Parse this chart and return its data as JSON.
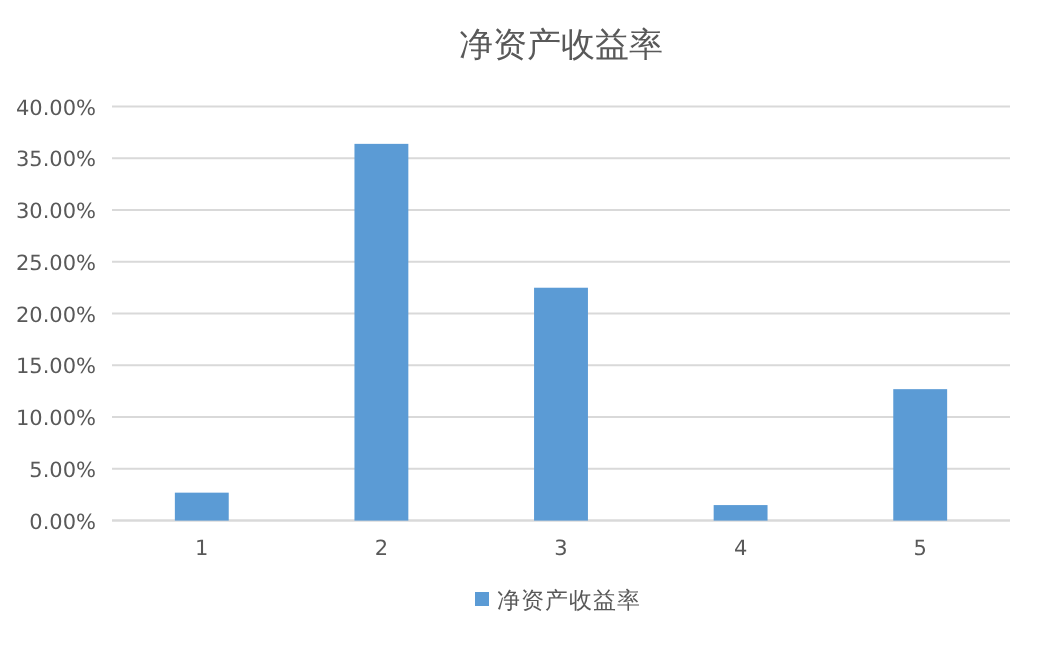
{
  "chart_data": {
    "type": "bar",
    "title": "净资产收益率",
    "categories": [
      "1",
      "2",
      "3",
      "4",
      "5"
    ],
    "series": [
      {
        "name": "净资产收益率",
        "color": "#5b9bd5",
        "values": [
          2.7,
          36.4,
          22.5,
          1.5,
          12.7
        ]
      }
    ],
    "ylim": [
      0,
      40
    ],
    "yticks": [
      {
        "value": 0,
        "label": "0.00%"
      },
      {
        "value": 5,
        "label": "5.00%"
      },
      {
        "value": 10,
        "label": "10.00%"
      },
      {
        "value": 15,
        "label": "15.00%"
      },
      {
        "value": 20,
        "label": "20.00%"
      },
      {
        "value": 25,
        "label": "25.00%"
      },
      {
        "value": 30,
        "label": "30.00%"
      },
      {
        "value": 35,
        "label": "35.00%"
      },
      {
        "value": 40,
        "label": "40.00%"
      }
    ],
    "grid": "y",
    "legend": "bottom"
  }
}
